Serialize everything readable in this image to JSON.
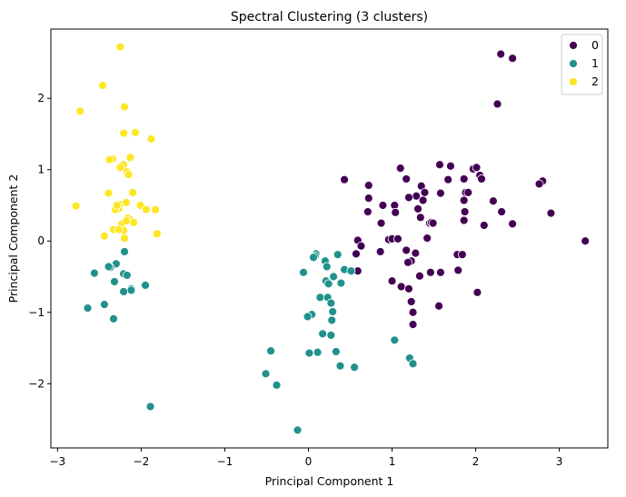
{
  "chart_data": {
    "type": "scatter",
    "title": "Spectral Clustering (3 clusters)",
    "xlabel": "Principal Component 1",
    "ylabel": "Principal Component 2",
    "xlim": [
      -3.08,
      3.58
    ],
    "ylim": [
      -2.9,
      2.97
    ],
    "xticks": [
      -3,
      -2,
      -1,
      0,
      1,
      2,
      3
    ],
    "yticks": [
      -2,
      -1,
      0,
      1,
      2
    ],
    "grid": false,
    "legend_position": "top-right",
    "series": [
      {
        "name": "0",
        "color": "#440154",
        "points": [
          [
            2.3,
            2.62
          ],
          [
            2.44,
            2.56
          ],
          [
            2.26,
            1.92
          ],
          [
            1.57,
            1.07
          ],
          [
            1.7,
            1.05
          ],
          [
            1.97,
            1.01
          ],
          [
            2.01,
            1.03
          ],
          [
            1.1,
            1.02
          ],
          [
            0.43,
            0.86
          ],
          [
            1.17,
            0.87
          ],
          [
            2.05,
            0.92
          ],
          [
            2.07,
            0.87
          ],
          [
            1.67,
            0.86
          ],
          [
            2.8,
            0.84
          ],
          [
            2.76,
            0.8
          ],
          [
            0.72,
            0.78
          ],
          [
            1.35,
            0.77
          ],
          [
            1.86,
            0.87
          ],
          [
            1.88,
            0.68
          ],
          [
            1.91,
            0.68
          ],
          [
            1.58,
            0.67
          ],
          [
            1.29,
            0.63
          ],
          [
            0.72,
            0.6
          ],
          [
            0.89,
            0.5
          ],
          [
            1.39,
            0.68
          ],
          [
            1.2,
            0.61
          ],
          [
            1.37,
            0.57
          ],
          [
            2.21,
            0.56
          ],
          [
            1.86,
            0.57
          ],
          [
            1.03,
            0.5
          ],
          [
            2.31,
            0.41
          ],
          [
            2.9,
            0.39
          ],
          [
            0.71,
            0.41
          ],
          [
            1.31,
            0.45
          ],
          [
            1.04,
            0.4
          ],
          [
            1.87,
            0.41
          ],
          [
            1.86,
            0.29
          ],
          [
            1.34,
            0.33
          ],
          [
            0.87,
            0.25
          ],
          [
            1.45,
            0.25
          ],
          [
            1.47,
            0.26
          ],
          [
            2.44,
            0.24
          ],
          [
            0.96,
            0.02
          ],
          [
            1.0,
            0.03
          ],
          [
            1.07,
            0.03
          ],
          [
            0.59,
            0.01
          ],
          [
            0.63,
            -0.07
          ],
          [
            1.17,
            -0.13
          ],
          [
            1.78,
            -0.19
          ],
          [
            1.84,
            -0.19
          ],
          [
            1.23,
            -0.28
          ],
          [
            1.19,
            -0.3
          ],
          [
            0.57,
            -0.18
          ],
          [
            0.86,
            -0.15
          ],
          [
            0.59,
            -0.42
          ],
          [
            1.33,
            -0.49
          ],
          [
            1.46,
            -0.44
          ],
          [
            1.58,
            -0.44
          ],
          [
            1.79,
            -0.41
          ],
          [
            3.31,
            0.0
          ],
          [
            1.42,
            0.04
          ],
          [
            1.28,
            -0.17
          ],
          [
            1.0,
            -0.56
          ],
          [
            1.11,
            -0.64
          ],
          [
            1.2,
            -0.67
          ],
          [
            2.02,
            -0.72
          ],
          [
            1.23,
            -0.85
          ],
          [
            1.56,
            -0.91
          ],
          [
            1.25,
            -1.0
          ],
          [
            1.25,
            -1.17
          ],
          [
            1.49,
            0.25
          ],
          [
            2.1,
            0.22
          ]
        ]
      },
      {
        "name": "1",
        "color": "#21918c",
        "points": [
          [
            -2.2,
            -0.15
          ],
          [
            -2.3,
            -0.32
          ],
          [
            -2.37,
            -0.37
          ],
          [
            -2.39,
            -0.36
          ],
          [
            -2.56,
            -0.45
          ],
          [
            -2.21,
            -0.46
          ],
          [
            -2.17,
            -0.48
          ],
          [
            -2.12,
            -0.67
          ],
          [
            -2.12,
            -0.69
          ],
          [
            -1.95,
            -0.62
          ],
          [
            -2.32,
            -0.57
          ],
          [
            -2.21,
            -0.71
          ],
          [
            -2.44,
            -0.89
          ],
          [
            -2.64,
            -0.94
          ],
          [
            -2.33,
            -1.09
          ],
          [
            -1.89,
            -2.32
          ],
          [
            0.09,
            -0.18
          ],
          [
            0.08,
            -0.21
          ],
          [
            0.35,
            -0.19
          ],
          [
            0.2,
            -0.28
          ],
          [
            0.22,
            -0.36
          ],
          [
            0.43,
            -0.4
          ],
          [
            0.51,
            -0.42
          ],
          [
            0.3,
            -0.5
          ],
          [
            -0.06,
            -0.44
          ],
          [
            0.39,
            -0.59
          ],
          [
            0.21,
            -0.56
          ],
          [
            0.24,
            -0.6
          ],
          [
            0.14,
            -0.79
          ],
          [
            0.23,
            -0.79
          ],
          [
            0.27,
            -0.87
          ],
          [
            0.04,
            -1.03
          ],
          [
            -0.01,
            -1.06
          ],
          [
            0.29,
            -0.99
          ],
          [
            0.28,
            -1.11
          ],
          [
            0.17,
            -1.3
          ],
          [
            0.27,
            -1.32
          ],
          [
            0.33,
            -1.55
          ],
          [
            0.11,
            -1.56
          ],
          [
            0.01,
            -1.57
          ],
          [
            -0.45,
            -1.54
          ],
          [
            0.38,
            -1.75
          ],
          [
            0.55,
            -1.77
          ],
          [
            -0.51,
            -1.86
          ],
          [
            -0.38,
            -2.02
          ],
          [
            -0.13,
            -2.65
          ],
          [
            1.03,
            -1.39
          ],
          [
            1.21,
            -1.64
          ],
          [
            1.25,
            -1.72
          ],
          [
            0.06,
            -0.23
          ]
        ]
      },
      {
        "name": "2",
        "color": "#fde725",
        "points": [
          [
            -2.25,
            2.72
          ],
          [
            -2.46,
            2.18
          ],
          [
            -2.73,
            1.82
          ],
          [
            -2.2,
            1.88
          ],
          [
            -2.21,
            1.51
          ],
          [
            -2.07,
            1.52
          ],
          [
            -1.88,
            1.43
          ],
          [
            -2.34,
            1.15
          ],
          [
            -2.38,
            1.14
          ],
          [
            -2.13,
            1.17
          ],
          [
            -2.21,
            1.07
          ],
          [
            -2.25,
            1.03
          ],
          [
            -2.17,
            0.97
          ],
          [
            -2.15,
            0.93
          ],
          [
            -2.1,
            0.68
          ],
          [
            -2.39,
            0.67
          ],
          [
            -2.25,
            0.51
          ],
          [
            -2.27,
            0.45
          ],
          [
            -2.18,
            0.54
          ],
          [
            -2.01,
            0.5
          ],
          [
            -1.94,
            0.44
          ],
          [
            -1.83,
            0.44
          ],
          [
            -2.78,
            0.49
          ],
          [
            -2.31,
            0.44
          ],
          [
            -2.16,
            0.32
          ],
          [
            -2.12,
            0.29
          ],
          [
            -2.23,
            0.24
          ],
          [
            -2.33,
            0.16
          ],
          [
            -2.21,
            0.15
          ],
          [
            -2.09,
            0.26
          ],
          [
            -2.44,
            0.07
          ],
          [
            -1.81,
            0.1
          ],
          [
            -2.27,
            0.16
          ],
          [
            -2.2,
            0.04
          ],
          [
            -2.18,
            0.28
          ],
          [
            -2.29,
            0.5
          ]
        ]
      }
    ]
  }
}
